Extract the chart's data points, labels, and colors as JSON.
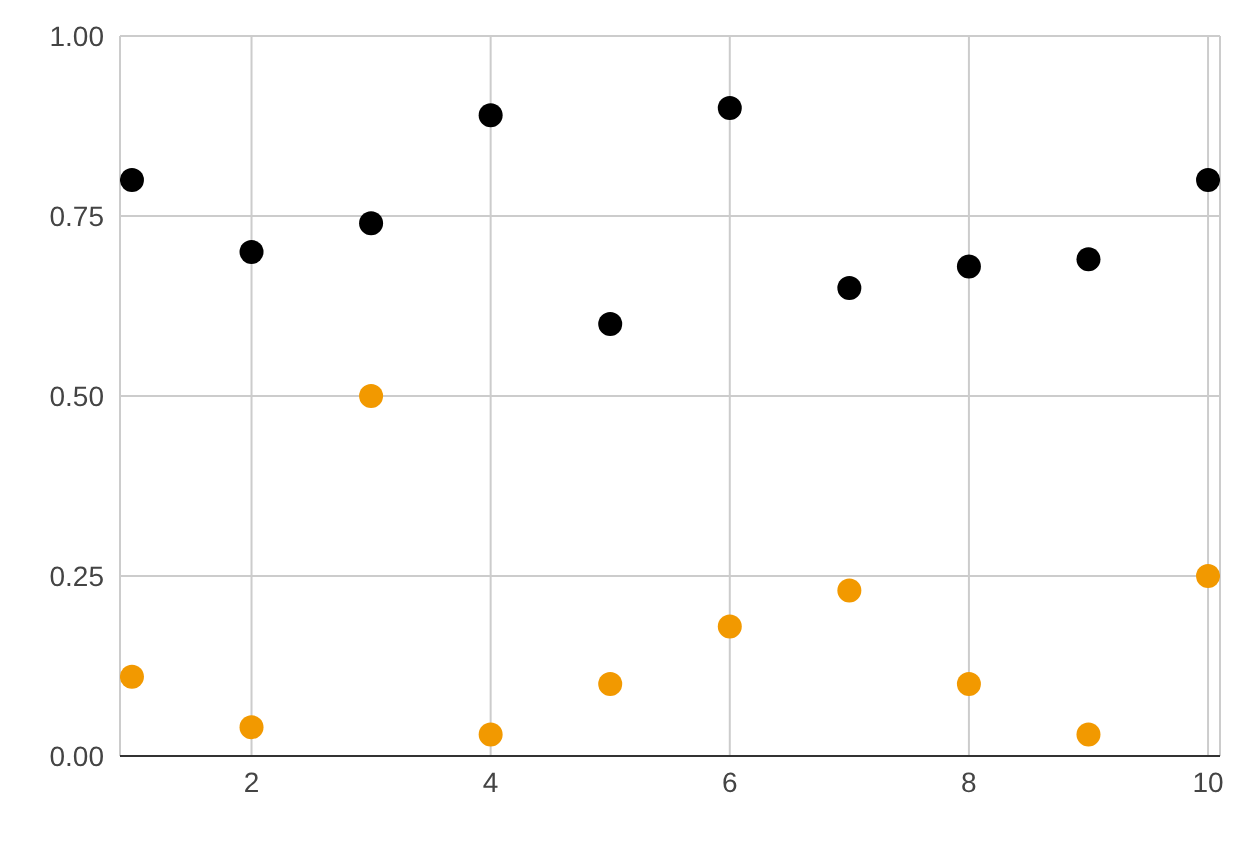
{
  "chart_data": {
    "type": "scatter",
    "x": [
      1,
      2,
      3,
      4,
      5,
      6,
      7,
      8,
      9,
      10
    ],
    "series": [
      {
        "color": "#000000",
        "values": [
          0.8,
          0.7,
          0.74,
          0.89,
          0.6,
          0.9,
          0.65,
          0.68,
          0.69,
          0.8
        ]
      },
      {
        "color": "#f29900",
        "values": [
          0.11,
          0.04,
          0.5,
          0.03,
          0.1,
          0.18,
          0.23,
          0.1,
          0.03,
          0.25
        ]
      }
    ],
    "xlim": [
      0.9,
      10.1
    ],
    "xticks": [
      2,
      4,
      6,
      8,
      10
    ],
    "ylim": [
      0,
      1
    ],
    "yticks": [
      {
        "value": 0,
        "label": "0.00"
      },
      {
        "value": 0.25,
        "label": "0.25"
      },
      {
        "value": 0.5,
        "label": "0.50"
      },
      {
        "value": 0.75,
        "label": "0.75"
      },
      {
        "value": 1,
        "label": "1.00"
      }
    ],
    "grid": true,
    "marker": "circle"
  }
}
